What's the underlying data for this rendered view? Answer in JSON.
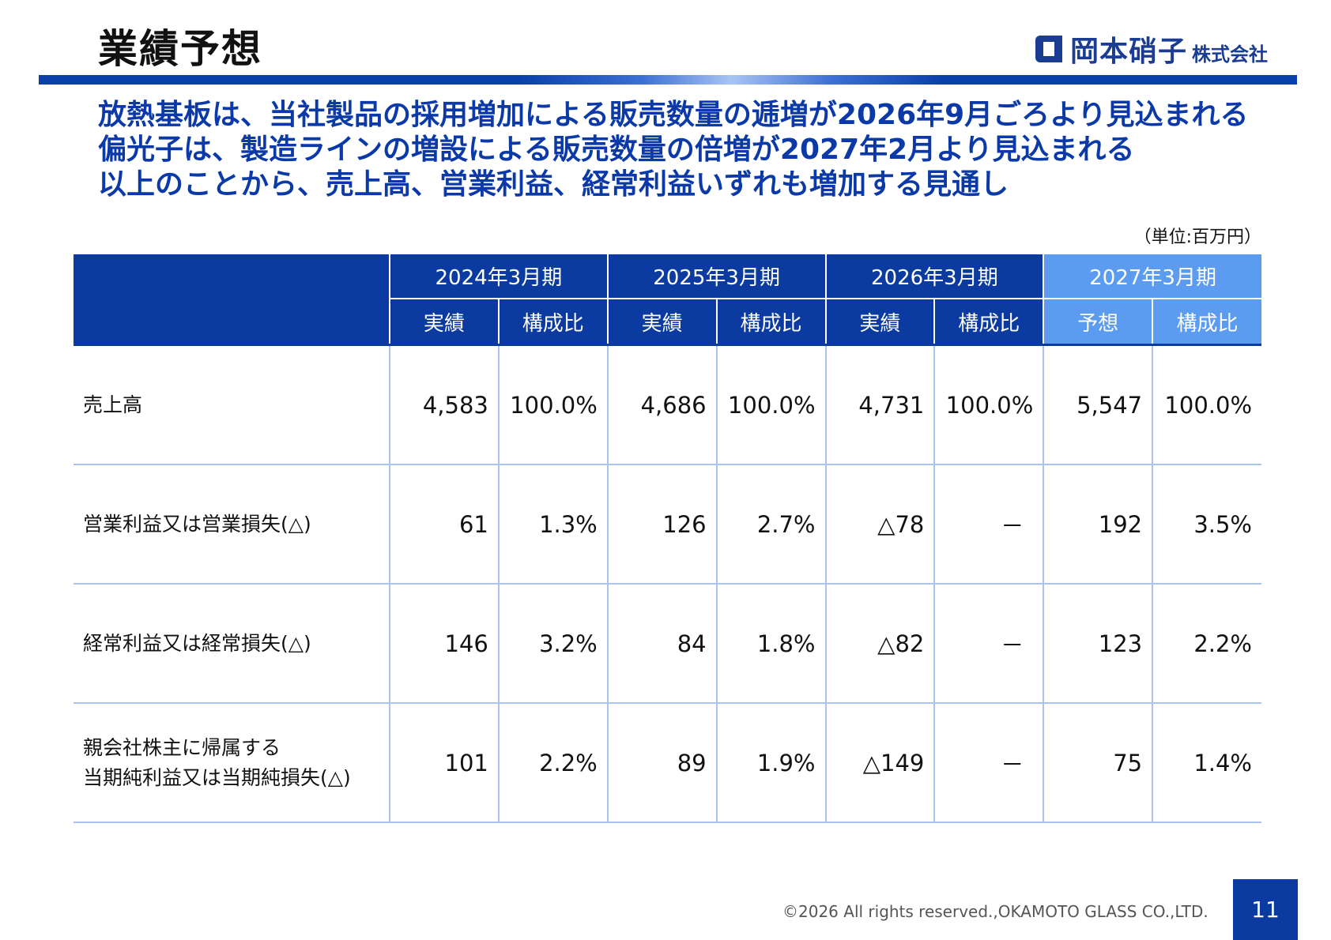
{
  "title": "業績予想",
  "logo": {
    "name": "岡本硝子",
    "suffix": "株式会社"
  },
  "headlines": [
    "放熱基板は、当社製品の採用増加による販売数量の逓増が2026年9月ごろより見込まれる",
    "偏光子は、製造ラインの増設による販売数量の倍増が2027年2月より見込まれる",
    "以上のことから、売上高、営業利益、経常利益いずれも増加する見通し"
  ],
  "unit": "（単位:百万円）",
  "table": {
    "periods": [
      "2024年3月期",
      "2025年3月期",
      "2026年3月期",
      "2027年3月期"
    ],
    "subheaders": [
      "実績",
      "構成比",
      "実績",
      "構成比",
      "実績",
      "構成比",
      "予想",
      "構成比"
    ],
    "rows": [
      {
        "label": "売上高",
        "cells": [
          "4,583",
          "100.0%",
          "4,686",
          "100.0%",
          "4,731",
          "100.0%",
          "5,547",
          "100.0%"
        ]
      },
      {
        "label": "営業利益又は営業損失(△)",
        "cells": [
          "61",
          "1.3%",
          "126",
          "2.7%",
          "△78",
          "－",
          "192",
          "3.5%"
        ]
      },
      {
        "label": "経常利益又は経常損失(△)",
        "cells": [
          "146",
          "3.2%",
          "84",
          "1.8%",
          "△82",
          "－",
          "123",
          "2.2%"
        ]
      },
      {
        "label_line1": "親会社株主に帰属する",
        "label_line2": "当期純利益又は当期純損失(△)",
        "cells": [
          "101",
          "2.2%",
          "89",
          "1.9%",
          "△149",
          "－",
          "75",
          "1.4%"
        ]
      }
    ]
  },
  "footer": "©2026  All rights reserved.,OKAMOTO GLASS CO.,LTD.",
  "page_number": "11",
  "colors": {
    "header_blue": "#0b3aa0",
    "forecast_blue": "#5b9bf0",
    "headline_blue": "#0b3aa8",
    "grid": "#a8c4ef"
  }
}
